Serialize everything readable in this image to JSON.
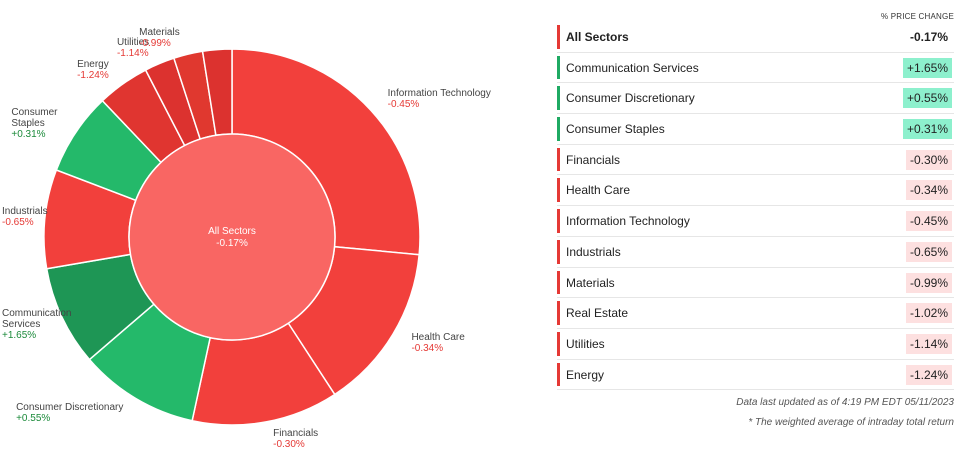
{
  "chart_data": {
    "type": "pie",
    "title": "",
    "center": {
      "label": "All Sectors",
      "value": "-0.17%"
    },
    "slices": [
      {
        "name": "Information Technology",
        "value": 26.5,
        "change": "-0.45%",
        "color": "#f2403c",
        "direction": "neg"
      },
      {
        "name": "Health Care",
        "value": 14.3,
        "change": "-0.34%",
        "color": "#f2403c",
        "direction": "neg"
      },
      {
        "name": "Financials",
        "value": 12.6,
        "change": "-0.30%",
        "color": "#f2403c",
        "direction": "neg"
      },
      {
        "name": "Consumer Discretionary",
        "value": 10.3,
        "change": "+0.55%",
        "color": "#24b96a",
        "direction": "pos"
      },
      {
        "name": "Communication Services",
        "value": 8.6,
        "change": "+1.65%",
        "color": "#1e9655",
        "direction": "pos"
      },
      {
        "name": "Industrials",
        "value": 8.5,
        "change": "-0.65%",
        "color": "#f2403c",
        "direction": "neg"
      },
      {
        "name": "Consumer Staples",
        "value": 7.1,
        "change": "+0.31%",
        "color": "#24b96a",
        "direction": "pos"
      },
      {
        "name": "Energy",
        "value": 4.5,
        "change": "-1.24%",
        "color": "#e03530",
        "direction": "neg"
      },
      {
        "name": "Utilities",
        "value": 2.6,
        "change": "-1.14%",
        "color": "#dc322f",
        "direction": "neg"
      },
      {
        "name": "Materials",
        "value": 2.5,
        "change": "-0.99%",
        "color": "#e0382f",
        "direction": "neg"
      },
      {
        "name": "Real Estate",
        "value": 2.5,
        "change": "-1.02%",
        "color": "#dc322f",
        "direction": "neg"
      }
    ],
    "labels": [
      {
        "slice": "Information Technology",
        "name": "Information Technology",
        "value": "-0.45%"
      },
      {
        "slice": "Health Care",
        "name": "Health Care",
        "value": "-0.34%"
      },
      {
        "slice": "Financials",
        "name": "Financials",
        "value": "-0.30%"
      },
      {
        "slice": "Consumer Discretionary",
        "name": "Consumer Discretionary",
        "value": "+0.55%"
      },
      {
        "slice": "Communication Services",
        "name": "Communication\nServices",
        "value": "+1.65%"
      },
      {
        "slice": "Industrials",
        "name": "Industrials",
        "value": "-0.65%"
      },
      {
        "slice": "Consumer Staples",
        "name": "Consumer\nStaples",
        "value": "+0.31%"
      },
      {
        "slice": "Energy",
        "name": "Energy",
        "value": "-1.24%"
      },
      {
        "slice": "Utilities",
        "name": "Utilities",
        "value": "-1.14%"
      },
      {
        "slice": "Materials",
        "name": "Materials",
        "value": "-0.99%"
      }
    ],
    "colors": {
      "negative_text": "#e53935",
      "positive_text": "#1b8a3a",
      "center_fill": "#f96663",
      "negative_badge_bg": "#fde0e0",
      "positive_badge_bg": "#8df0cd",
      "negative_bar": "#e53935",
      "positive_bar": "#1faa63"
    }
  },
  "table": {
    "column_header": "% PRICE CHANGE",
    "rows": [
      {
        "name": "All Sectors",
        "value": "-0.17%",
        "direction": "neg",
        "is_total": true
      },
      {
        "name": "Communication Services",
        "value": "+1.65%",
        "direction": "pos"
      },
      {
        "name": "Consumer Discretionary",
        "value": "+0.55%",
        "direction": "pos"
      },
      {
        "name": "Consumer Staples",
        "value": "+0.31%",
        "direction": "pos"
      },
      {
        "name": "Financials",
        "value": "-0.30%",
        "direction": "neg"
      },
      {
        "name": "Health Care",
        "value": "-0.34%",
        "direction": "neg"
      },
      {
        "name": "Information Technology",
        "value": "-0.45%",
        "direction": "neg"
      },
      {
        "name": "Industrials",
        "value": "-0.65%",
        "direction": "neg"
      },
      {
        "name": "Materials",
        "value": "-0.99%",
        "direction": "neg"
      },
      {
        "name": "Real Estate",
        "value": "-1.02%",
        "direction": "neg"
      },
      {
        "name": "Utilities",
        "value": "-1.14%",
        "direction": "neg"
      },
      {
        "name": "Energy",
        "value": "-1.24%",
        "direction": "neg"
      }
    ]
  },
  "footnotes": {
    "updated": "Data last updated as of 4:19 PM EDT 05/11/2023",
    "note": "* The weighted average of intraday total return"
  }
}
